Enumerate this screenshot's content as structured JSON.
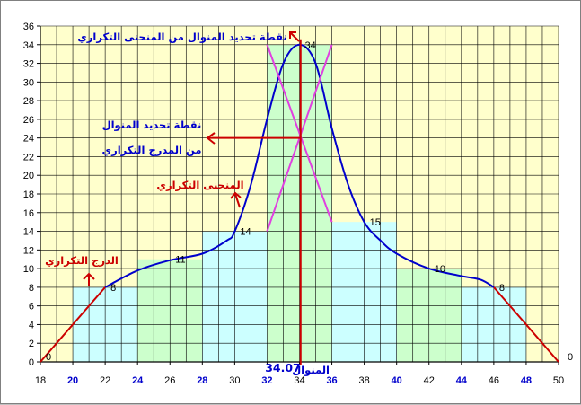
{
  "chart_data": {
    "type": "bar",
    "title": "",
    "xlabel": "",
    "ylabel": "",
    "xlim": [
      18,
      50
    ],
    "ylim": [
      0,
      36
    ],
    "grid": true,
    "x_ticks_black": [
      "18",
      "22",
      "26",
      "30",
      "34",
      "38",
      "42",
      "46",
      "50"
    ],
    "x_ticks_blue": [
      "20",
      "24",
      "28",
      "32",
      "36",
      "40",
      "44",
      "48"
    ],
    "y_ticks": [
      "0",
      "2",
      "4",
      "6",
      "8",
      "10",
      "12",
      "14",
      "16",
      "18",
      "20",
      "22",
      "24",
      "26",
      "28",
      "30",
      "32",
      "34",
      "36"
    ],
    "bins": [
      {
        "start": 20,
        "end": 24,
        "freq": 8,
        "color": "#ccffff"
      },
      {
        "start": 24,
        "end": 28,
        "freq": 11,
        "color": "#ccffcc"
      },
      {
        "start": 28,
        "end": 32,
        "freq": 14,
        "color": "#ccffff"
      },
      {
        "start": 32,
        "end": 36,
        "freq": 34,
        "color": "#ccffcc"
      },
      {
        "start": 36,
        "end": 40,
        "freq": 15,
        "color": "#ccffff"
      },
      {
        "start": 40,
        "end": 44,
        "freq": 10,
        "color": "#ccffcc"
      },
      {
        "start": 44,
        "end": 48,
        "freq": 8,
        "color": "#ccffff"
      }
    ],
    "point_labels": [
      {
        "x": 18,
        "y": 0,
        "text": "0"
      },
      {
        "x": 22,
        "y": 8,
        "text": "8"
      },
      {
        "x": 26,
        "y": 11,
        "text": "11"
      },
      {
        "x": 30,
        "y": 14,
        "text": "14"
      },
      {
        "x": 34,
        "y": 34,
        "text": "34"
      },
      {
        "x": 38,
        "y": 15,
        "text": "15"
      },
      {
        "x": 42,
        "y": 10,
        "text": "10"
      },
      {
        "x": 46,
        "y": 8,
        "text": "8"
      },
      {
        "x": 50,
        "y": 0,
        "text": "0"
      }
    ],
    "polygon_red": [
      [
        18,
        0
      ],
      [
        22,
        8
      ],
      [
        46,
        8
      ],
      [
        50,
        0
      ]
    ],
    "curve_blue": [
      [
        22,
        8
      ],
      [
        24,
        9.8
      ],
      [
        26,
        10.9
      ],
      [
        28,
        11.6
      ],
      [
        29.5,
        13
      ],
      [
        30,
        14
      ],
      [
        31,
        19
      ],
      [
        32,
        26
      ],
      [
        33,
        32
      ],
      [
        34,
        34
      ],
      [
        35,
        32
      ],
      [
        36,
        25
      ],
      [
        37,
        19
      ],
      [
        38,
        15
      ],
      [
        39,
        13
      ],
      [
        40,
        11.6
      ],
      [
        42,
        10
      ],
      [
        44,
        9.2
      ],
      [
        45.2,
        8.8
      ],
      [
        46,
        8
      ]
    ],
    "mode_lines": [
      {
        "from": [
          32,
          14
        ],
        "to": [
          36,
          34
        ]
      },
      {
        "from": [
          32,
          34
        ],
        "to": [
          36,
          15
        ]
      }
    ],
    "mode_value": 34.07,
    "mode_caption": "34.07",
    "annotations": {
      "curve_mode_point": "نقطة تحديد المنوال من المنحنى التكراري",
      "hist_mode_point_line1": "نقطة تحديد المنوال",
      "hist_mode_point_line2": "من المدرج التكراري",
      "freq_curve": "المنحنى التكراري",
      "freq_histogram": "الدرج التكراري",
      "mode_label": "المنوال"
    },
    "colors": {
      "plot_bg": "#ffffcc",
      "hist_a": "#ccffff",
      "hist_b": "#ccffcc",
      "curve": "#0000cc",
      "polygon": "#cc0000",
      "mode_lines": "#e040e0",
      "arrows": "#cc0000",
      "blue_text": "#0000cc",
      "red_text": "#cc0000"
    }
  }
}
